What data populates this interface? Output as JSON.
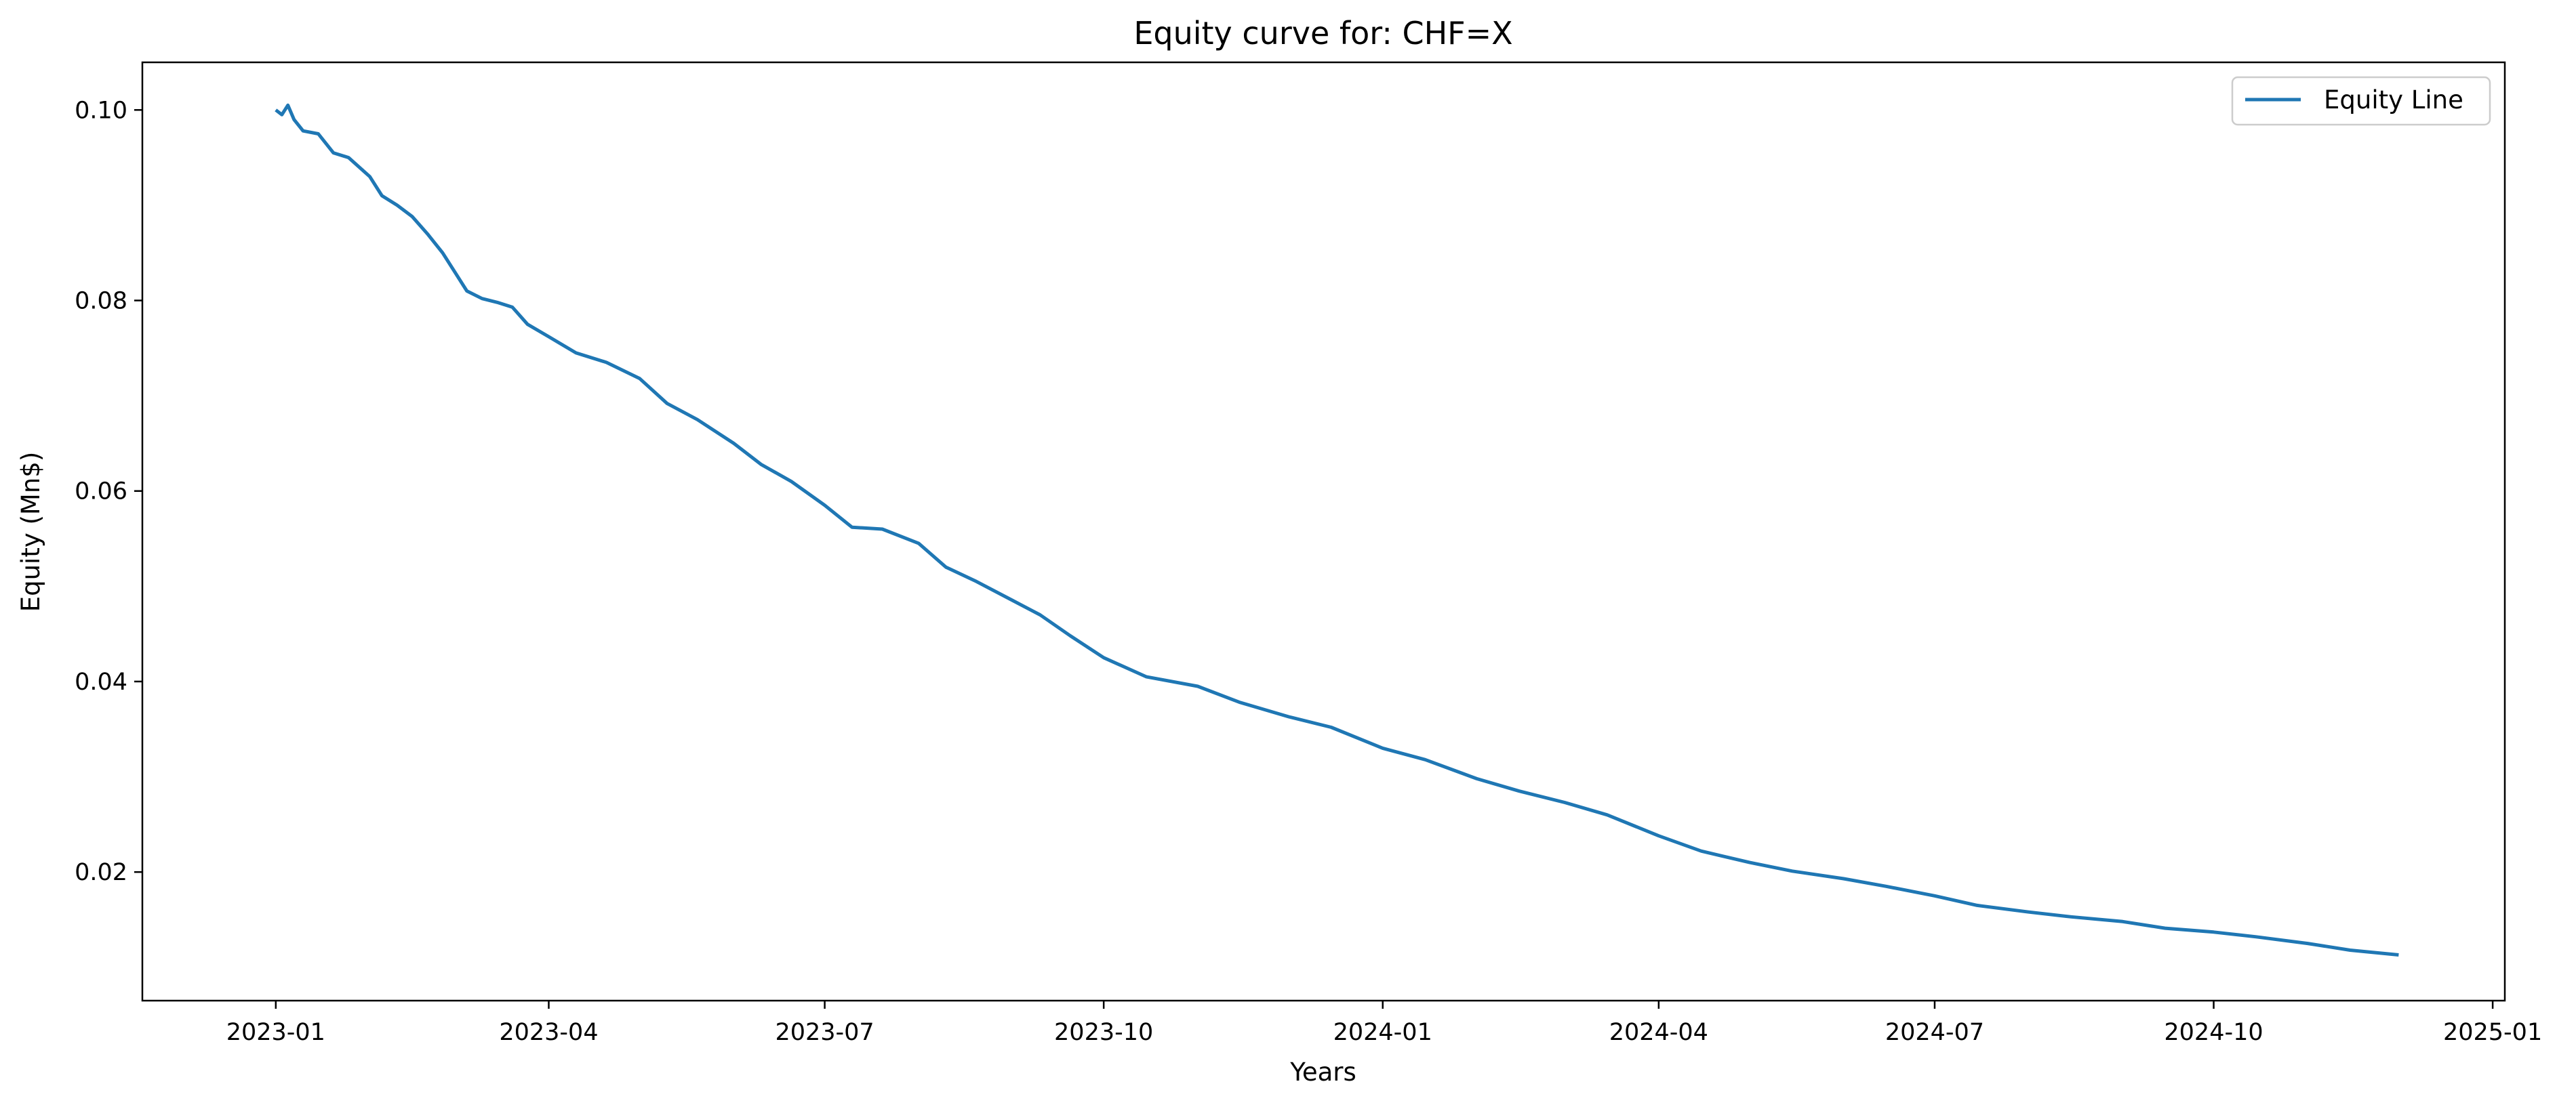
{
  "chart_data": {
    "type": "line",
    "title": "Equity curve for: CHF=X",
    "xlabel": "Years",
    "ylabel": "Equity (Mn$)",
    "x_ticks": [
      "2023-01",
      "2023-04",
      "2023-07",
      "2023-10",
      "2024-01",
      "2024-04",
      "2024-07",
      "2024-10",
      "2025-01"
    ],
    "y_ticks": [
      "0.02",
      "0.04",
      "0.06",
      "0.08",
      "0.10"
    ],
    "xlim": [
      "2022-11-18",
      "2025-01-05"
    ],
    "ylim": [
      0.0065,
      0.105
    ],
    "grid": false,
    "legend_position": "top-right",
    "series": [
      {
        "name": "Equity Line",
        "color": "#1f77b4",
        "x": [
          "2023-01-01",
          "2023-01-03",
          "2023-01-05",
          "2023-01-07",
          "2023-01-10",
          "2023-01-15",
          "2023-01-20",
          "2023-01-25",
          "2023-02-01",
          "2023-02-05",
          "2023-02-10",
          "2023-02-15",
          "2023-02-20",
          "2023-02-25",
          "2023-03-01",
          "2023-03-05",
          "2023-03-10",
          "2023-03-15",
          "2023-03-20",
          "2023-03-25",
          "2023-04-01",
          "2023-04-10",
          "2023-04-20",
          "2023-05-01",
          "2023-05-10",
          "2023-05-20",
          "2023-06-01",
          "2023-06-10",
          "2023-06-20",
          "2023-07-01",
          "2023-07-10",
          "2023-07-20",
          "2023-08-01",
          "2023-08-10",
          "2023-08-20",
          "2023-09-01",
          "2023-09-10",
          "2023-09-20",
          "2023-10-01",
          "2023-10-15",
          "2023-11-01",
          "2023-11-15",
          "2023-12-01",
          "2023-12-15",
          "2024-01-01",
          "2024-01-15",
          "2024-02-01",
          "2024-02-15",
          "2024-03-01",
          "2024-03-15",
          "2024-04-01",
          "2024-04-15",
          "2024-05-01",
          "2024-05-15",
          "2024-06-01",
          "2024-06-15",
          "2024-07-01",
          "2024-07-15",
          "2024-08-01",
          "2024-08-15",
          "2024-09-01",
          "2024-09-15",
          "2024-10-01",
          "2024-10-15",
          "2024-11-01",
          "2024-11-15",
          "2024-12-01"
        ],
        "values": [
          0.1,
          0.0995,
          0.1005,
          0.099,
          0.0978,
          0.0975,
          0.0955,
          0.095,
          0.093,
          0.091,
          0.09,
          0.0888,
          0.087,
          0.085,
          0.083,
          0.081,
          0.0802,
          0.0798,
          0.0793,
          0.0775,
          0.0762,
          0.0745,
          0.0735,
          0.0718,
          0.0692,
          0.0675,
          0.065,
          0.0628,
          0.061,
          0.0585,
          0.0562,
          0.056,
          0.0545,
          0.052,
          0.0505,
          0.0485,
          0.047,
          0.0448,
          0.0425,
          0.0405,
          0.0395,
          0.0378,
          0.0363,
          0.0352,
          0.033,
          0.0318,
          0.0298,
          0.0285,
          0.0273,
          0.026,
          0.0238,
          0.0222,
          0.021,
          0.0201,
          0.0193,
          0.0185,
          0.0175,
          0.0165,
          0.0158,
          0.0153,
          0.0148,
          0.0141,
          0.0137,
          0.0132,
          0.0125,
          0.0118,
          0.0113
        ]
      }
    ]
  }
}
